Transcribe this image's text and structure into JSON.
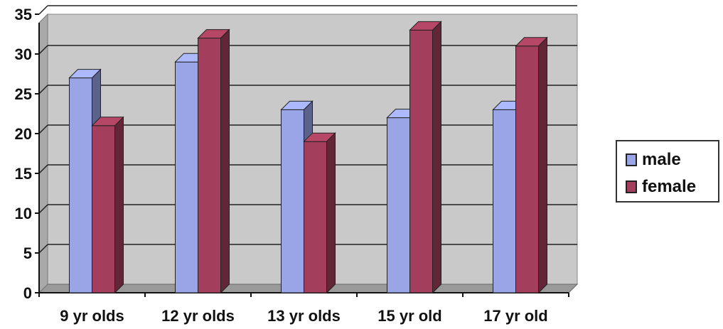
{
  "chart_data": {
    "type": "bar",
    "categories": [
      "9 yr olds",
      "12 yr olds",
      "13 yr olds",
      "15 yr old",
      "17 yr old"
    ],
    "series": [
      {
        "name": "male",
        "values": [
          27,
          29,
          23,
          22,
          23
        ],
        "color": "#9aa5e8"
      },
      {
        "name": "female",
        "values": [
          21,
          32,
          19,
          33,
          31
        ],
        "color": "#a33f5c"
      }
    ],
    "ylim": [
      0,
      35
    ],
    "yticks": [
      0,
      5,
      10,
      15,
      20,
      25,
      30,
      35
    ],
    "grid": true,
    "legend_position": "right",
    "wall_color": "#c9c9c9"
  }
}
